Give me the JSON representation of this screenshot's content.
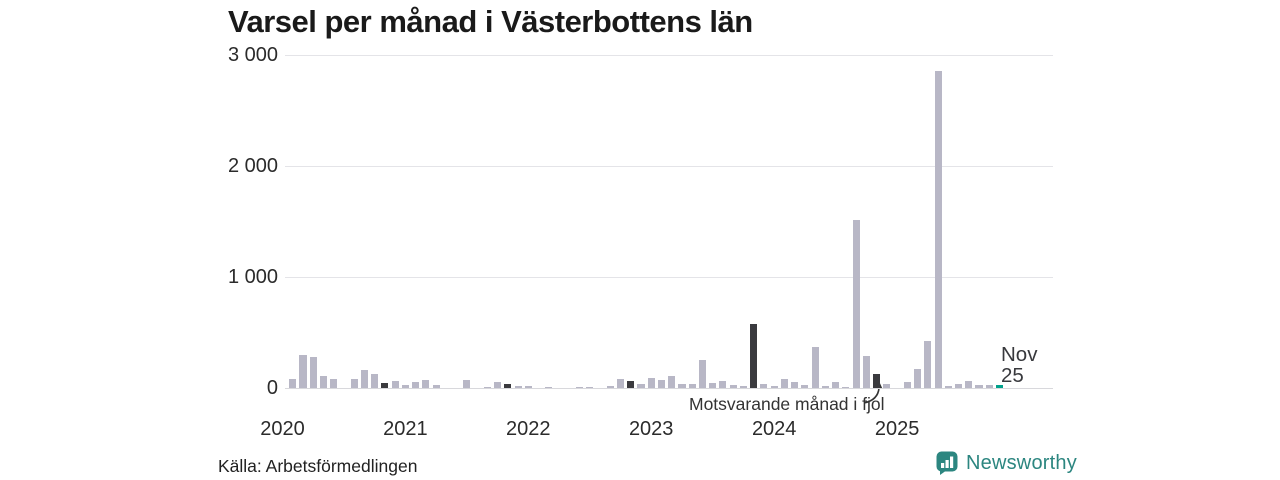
{
  "chart": {
    "title": "Varsel per månad i Västerbottens län",
    "annotation": "Motsvarande månad i fjol",
    "annotation_target": "november 2024",
    "current_label_line1": "Nov",
    "current_label_line2": "25",
    "source": "Källa: Arbetsförmedlingen"
  },
  "branding": {
    "logo_text": "Newsworthy",
    "logo_color": "#2c8680"
  },
  "chart_data": {
    "type": "bar",
    "title": "Varsel per månad i Västerbottens län",
    "x_start": "2020-01",
    "x_end": "2025-11",
    "ylim": [
      0,
      3000
    ],
    "yticks": [
      0,
      1000,
      2000,
      3000
    ],
    "ytick_labels": [
      "0",
      "1 000",
      "2 000",
      "3 000"
    ],
    "grid": "horizontal",
    "years": [
      "2020",
      "2021",
      "2022",
      "2023",
      "2024",
      "2025"
    ],
    "values_by_year": {
      "2020": [
        0,
        85,
        300,
        280,
        105,
        85,
        0,
        80,
        160,
        130,
        45,
        65
      ],
      "2021": [
        25,
        55,
        70,
        25,
        0,
        0,
        70,
        0,
        10,
        50,
        40,
        20
      ],
      "2022": [
        20,
        0,
        10,
        0,
        0,
        12,
        12,
        0,
        15,
        80,
        60,
        35
      ],
      "2023": [
        90,
        70,
        110,
        40,
        40,
        250,
        45,
        60,
        25,
        20,
        580,
        35
      ],
      "2024": [
        20,
        80,
        55,
        25,
        370,
        18,
        50,
        12,
        1515,
        290,
        130,
        35
      ],
      "2025": [
        0,
        55,
        175,
        420,
        2855,
        20,
        35,
        60,
        25,
        30,
        25
      ]
    },
    "highlight_rule": "november bars darkened; latest month (Nov 2025) teal",
    "colors": {
      "default": "#b8b7c6",
      "november": "#3a3a3e",
      "current": "#00a18b"
    },
    "legend": "none"
  }
}
